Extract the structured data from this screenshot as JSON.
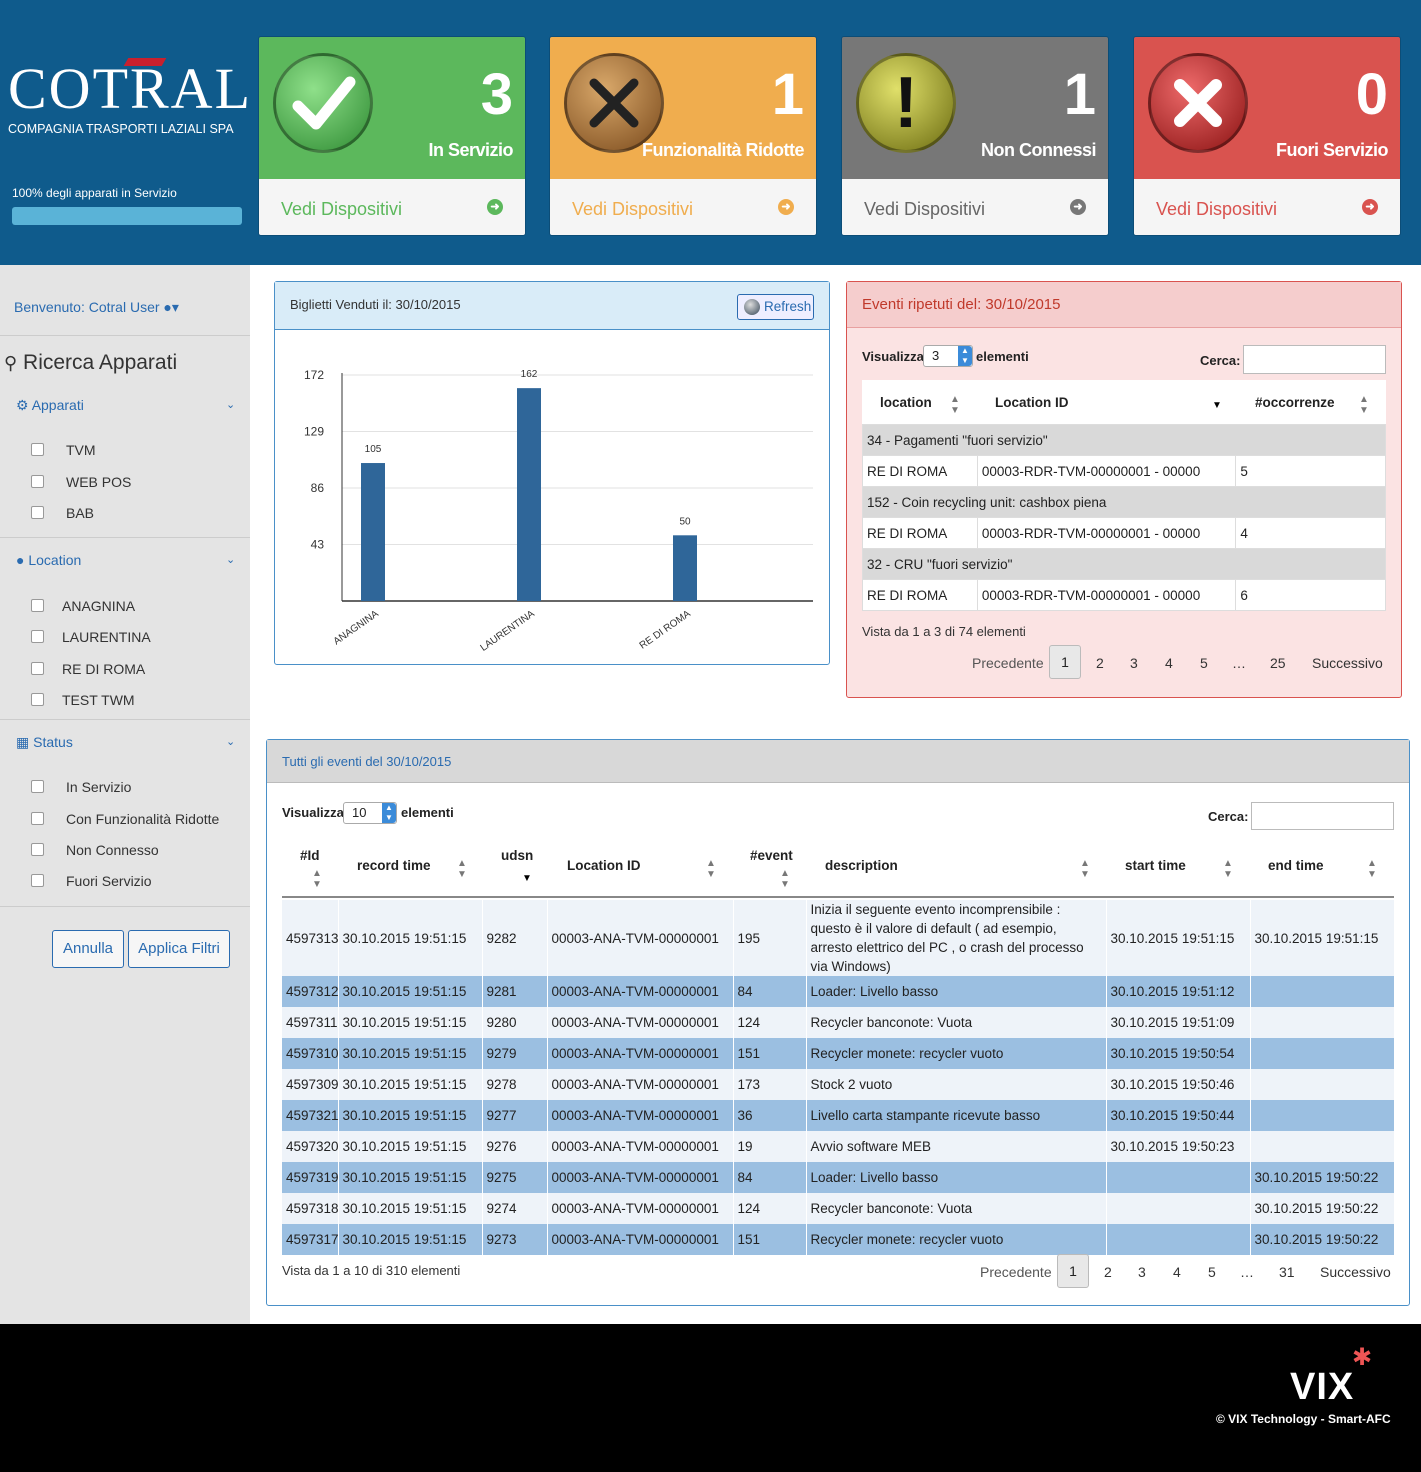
{
  "header": {
    "logo_text": "COTRAL",
    "logo_sub": "COMPAGNIA TRASPORTI LAZIALI SPA",
    "overall_status": "100% degli apparati in Servizio",
    "overall_progress": 1.0
  },
  "cards": [
    {
      "count": "3",
      "label": "In Servizio",
      "link": "Vedi Dispositivi",
      "color": "#5cb85c",
      "icon": "check-icon"
    },
    {
      "count": "1",
      "label": "Funzionalità Ridotte",
      "link": "Vedi Dispositivi",
      "color": "#f0ad4e",
      "icon": "tools-icon"
    },
    {
      "count": "1",
      "label": "Non Connessi",
      "link": "Vedi Dispositivi",
      "color": "#777777",
      "icon": "exclamation-icon"
    },
    {
      "count": "0",
      "label": "Fuori Servizio",
      "link": "Vedi Dispositivi",
      "color": "#d9534f",
      "icon": "x-icon"
    }
  ],
  "sidebar": {
    "welcome": "Benvenuto: Cotral User",
    "search_title": "Ricerca Apparati",
    "groups": [
      {
        "title": "Apparati",
        "icon": "gears-icon",
        "items": [
          "TVM",
          "WEB POS",
          "BAB"
        ]
      },
      {
        "title": "Location",
        "icon": "globe-icon",
        "items": [
          "ANAGNINA",
          "LAURENTINA",
          "RE DI ROMA",
          "TEST TWM"
        ]
      },
      {
        "title": "Status",
        "icon": "grid-icon",
        "items": [
          "In Servizio",
          "Con Funzionalità Ridotte",
          "Non Connesso",
          "Fuori Servizio"
        ]
      }
    ],
    "cancel_label": "Annulla",
    "apply_label": "Applica Filtri"
  },
  "tickets_panel": {
    "title": "Biglietti Venduti il: 30/10/2015",
    "refresh_label": "Refresh"
  },
  "chart_data": {
    "type": "bar",
    "categories": [
      "ANAGNINA",
      "LAURENTINA",
      "RE DI ROMA"
    ],
    "values": [
      105,
      162,
      50
    ],
    "yticks": [
      43,
      86,
      129,
      172
    ],
    "ylim": [
      0,
      172
    ],
    "title": "",
    "xlabel": "",
    "ylabel": "",
    "grid": true,
    "bar_color": "#2f6699"
  },
  "repeated_events": {
    "title": "Eventi ripetuti del: 30/10/2015",
    "show_label": "Visualizza",
    "show_value": "3",
    "elements_label": "elementi",
    "search_label": "Cerca:",
    "columns": [
      "location",
      "Location ID",
      "#occorrenze"
    ],
    "groups": [
      {
        "title": "34 - Pagamenti \"fuori servizio\"",
        "row": [
          "RE DI ROMA",
          "00003-RDR-TVM-00000001 - 00000",
          "5"
        ]
      },
      {
        "title": "152 - Coin recycling unit: cashbox piena",
        "row": [
          "RE DI ROMA",
          "00003-RDR-TVM-00000001 - 00000",
          "4"
        ]
      },
      {
        "title": "32 - CRU \"fuori servizio\"",
        "row": [
          "RE DI ROMA",
          "00003-RDR-TVM-00000001 - 00000",
          "6"
        ]
      }
    ],
    "info": "Vista da 1 a 3 di 74 elementi",
    "pager": [
      "Precedente",
      "1",
      "2",
      "3",
      "4",
      "5",
      "…",
      "25",
      "Successivo"
    ]
  },
  "all_events": {
    "title": "Tutti gli eventi del 30/10/2015",
    "show_label": "Visualizza",
    "show_value": "10",
    "elements_label": "elementi",
    "search_label": "Cerca:",
    "columns": [
      "#Id",
      "record time",
      "udsn",
      "Location ID",
      "#event",
      "description",
      "start time",
      "end time"
    ],
    "rows": [
      [
        "4597313",
        "30.10.2015 19:51:15",
        "9282",
        "00003-ANA-TVM-00000001",
        "195",
        "Inizia il seguente evento incomprensibile : questo è il valore di default ( ad esempio, arresto elettrico del PC , o crash del processo via Windows)",
        "30.10.2015 19:51:15",
        "30.10.2015 19:51:15"
      ],
      [
        "4597312",
        "30.10.2015 19:51:15",
        "9281",
        "00003-ANA-TVM-00000001",
        "84",
        "Loader: Livello basso",
        "30.10.2015 19:51:12",
        ""
      ],
      [
        "4597311",
        "30.10.2015 19:51:15",
        "9280",
        "00003-ANA-TVM-00000001",
        "124",
        "Recycler banconote: Vuota",
        "30.10.2015 19:51:09",
        ""
      ],
      [
        "4597310",
        "30.10.2015 19:51:15",
        "9279",
        "00003-ANA-TVM-00000001",
        "151",
        "Recycler monete: recycler vuoto",
        "30.10.2015 19:50:54",
        ""
      ],
      [
        "4597309",
        "30.10.2015 19:51:15",
        "9278",
        "00003-ANA-TVM-00000001",
        "173",
        "Stock 2 vuoto",
        "30.10.2015 19:50:46",
        ""
      ],
      [
        "4597321",
        "30.10.2015 19:51:15",
        "9277",
        "00003-ANA-TVM-00000001",
        "36",
        "Livello carta stampante ricevute basso",
        "30.10.2015 19:50:44",
        ""
      ],
      [
        "4597320",
        "30.10.2015 19:51:15",
        "9276",
        "00003-ANA-TVM-00000001",
        "19",
        "Avvio software MEB",
        "30.10.2015 19:50:23",
        ""
      ],
      [
        "4597319",
        "30.10.2015 19:51:15",
        "9275",
        "00003-ANA-TVM-00000001",
        "84",
        "Loader: Livello basso",
        "",
        "30.10.2015 19:50:22"
      ],
      [
        "4597318",
        "30.10.2015 19:51:15",
        "9274",
        "00003-ANA-TVM-00000001",
        "124",
        "Recycler banconote: Vuota",
        "",
        "30.10.2015 19:50:22"
      ],
      [
        "4597317",
        "30.10.2015 19:51:15",
        "9273",
        "00003-ANA-TVM-00000001",
        "151",
        "Recycler monete: recycler vuoto",
        "",
        "30.10.2015 19:50:22"
      ]
    ],
    "info": "Vista da 1 a 10 di 310 elementi",
    "pager": [
      "Precedente",
      "1",
      "2",
      "3",
      "4",
      "5",
      "…",
      "31",
      "Successivo"
    ]
  },
  "footer": {
    "brand": "VIX",
    "copyright": "© VIX Technology - Smart-AFC"
  }
}
